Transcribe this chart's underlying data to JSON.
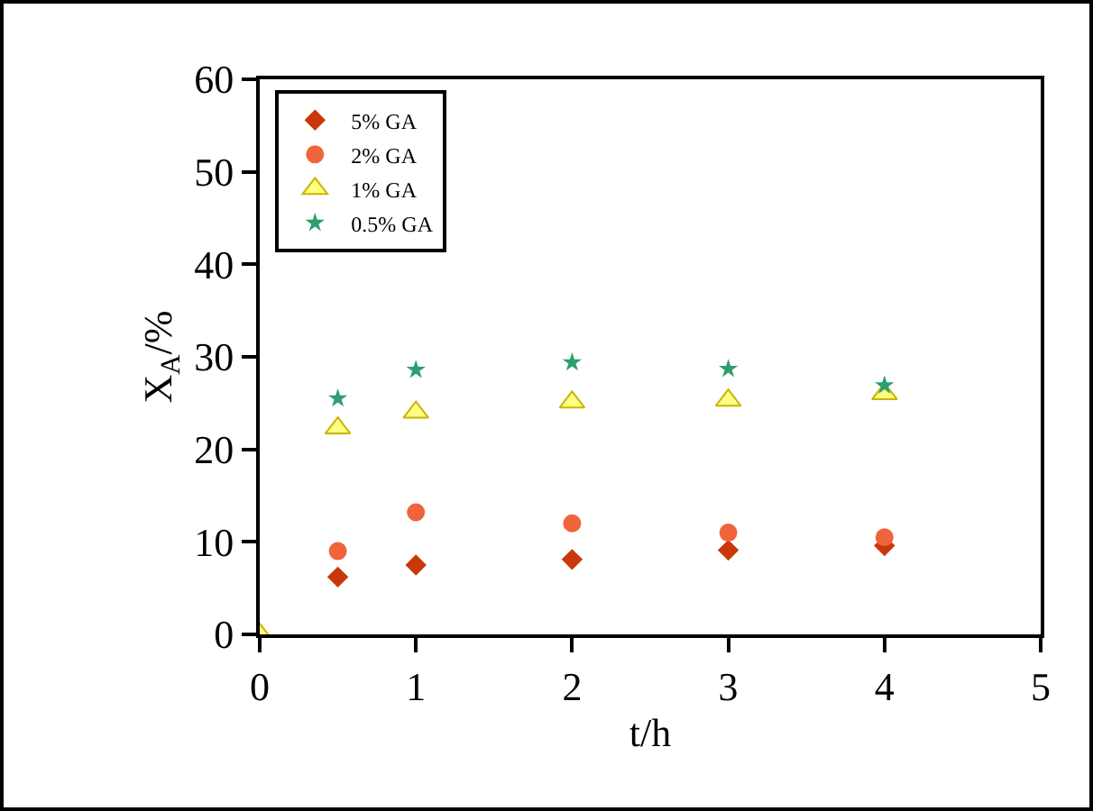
{
  "chart_data": {
    "type": "scatter",
    "xlabel": "t/h",
    "ylabel": "X$_{A}$/%",
    "x": [
      0,
      0.5,
      1,
      2,
      3,
      4
    ],
    "series": [
      {
        "name": "5% GA",
        "color": "#c8380a",
        "marker": "diamond",
        "values": [
          null,
          6.2,
          7.5,
          8.1,
          9.1,
          9.6
        ]
      },
      {
        "name": "2% GA",
        "color": "#f0643c",
        "marker": "circle",
        "values": [
          null,
          9.0,
          13.2,
          12.0,
          11.0,
          10.5
        ]
      },
      {
        "name": "1% GA",
        "color": "#ffff80",
        "marker": "triangle",
        "values": [
          0,
          22.3,
          24.0,
          25.1,
          25.3,
          26.0
        ]
      },
      {
        "name": "0.5% GA",
        "color": "#2e9e6e",
        "marker": "star",
        "values": [
          null,
          25.5,
          28.6,
          29.4,
          28.7,
          26.9
        ]
      }
    ],
    "xlim": [
      0,
      5
    ],
    "xticks": [
      0,
      1,
      2,
      3,
      4,
      5
    ],
    "ylim": [
      0,
      60
    ],
    "yticks": [
      0,
      10,
      20,
      30,
      40,
      50,
      60
    ],
    "grid": false,
    "legend": "top left"
  }
}
